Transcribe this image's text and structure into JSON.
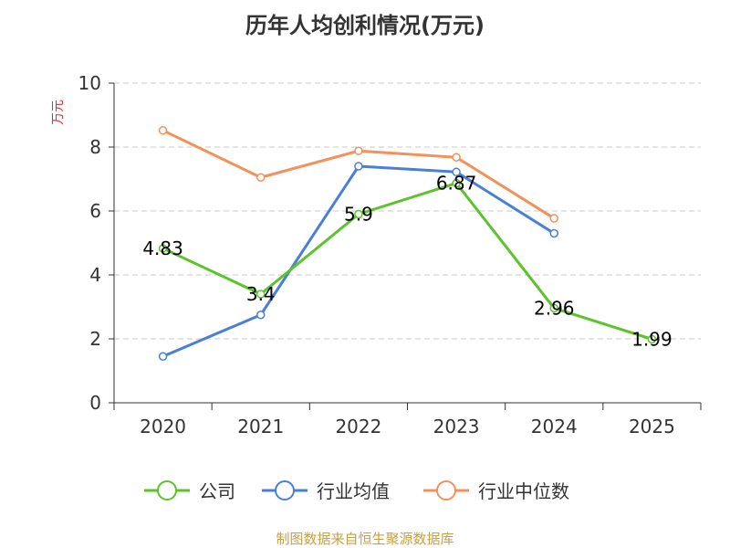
{
  "chart_data": {
    "type": "line",
    "title": "历年人均创利情况(万元)",
    "ylabel": "万元",
    "xlabel": "",
    "categories": [
      "2020",
      "2021",
      "2022",
      "2023",
      "2024",
      "2025"
    ],
    "ylim": [
      0,
      10
    ],
    "yticks": [
      0,
      2,
      4,
      6,
      8,
      10
    ],
    "grid": true,
    "legend_position": "bottom",
    "series": [
      {
        "name": "公司",
        "color": "#5ac42a",
        "values": [
          4.83,
          3.4,
          5.9,
          6.87,
          2.96,
          1.99
        ],
        "labels": [
          "4.83",
          "3.4",
          "5.9",
          "6.87",
          "2.96",
          "1.99"
        ]
      },
      {
        "name": "行业均值",
        "color": "#4a7fd8",
        "values": [
          1.45,
          2.75,
          7.4,
          7.22,
          5.3,
          null
        ]
      },
      {
        "name": "行业中位数",
        "color": "#f4905a",
        "values": [
          8.52,
          7.05,
          7.88,
          7.68,
          5.77,
          null
        ]
      }
    ]
  },
  "source": "制图数据来自恒生聚源数据库"
}
